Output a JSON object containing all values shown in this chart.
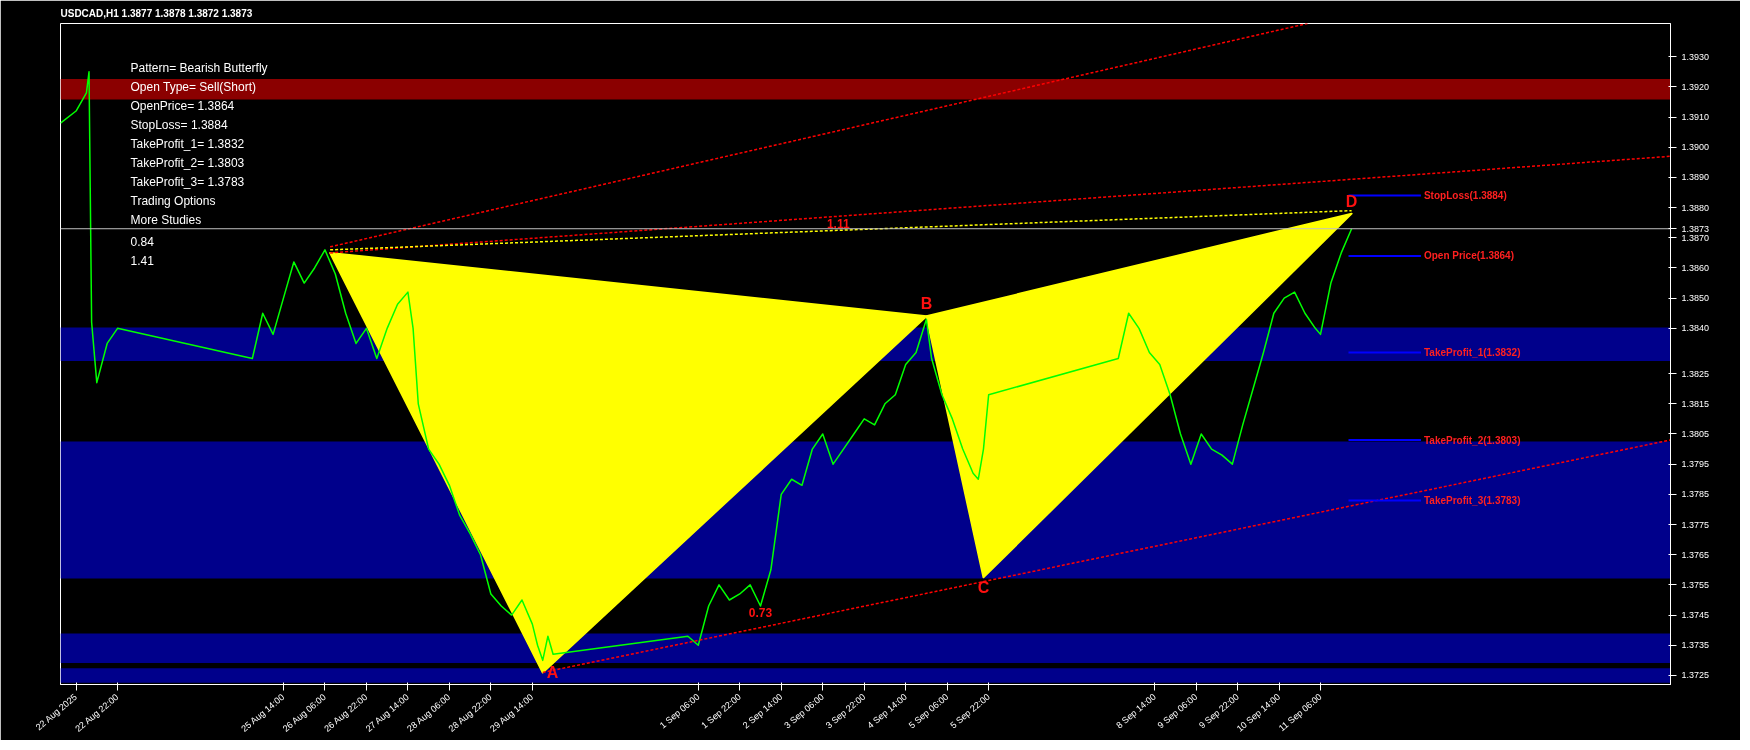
{
  "chart_data": {
    "type": "line",
    "title": "USDCAD,H1  1.3877 1.3878 1.3872 1.3873",
    "annotations": [
      "Pattern= Bearish Butterfly",
      "Open Type= Sell(Short)",
      "OpenPrice= 1.3864",
      "StopLoss= 1.3884",
      "TakeProfit_1= 1.3832",
      "TakeProfit_2= 1.3803",
      "TakeProfit_3= 1.3783",
      "Trading Options",
      "More Studies",
      "0.84",
      "1.41",
      {
        "text": "A",
        "x": "2025-08-29T18:00",
        "y": 1.3726
      },
      {
        "text": "B",
        "x": "2025-09-04T22:00",
        "y": 1.3844
      },
      {
        "text": "C",
        "x": "2025-09-05T20:00",
        "y": 1.37575
      },
      {
        "text": "D",
        "x": "2025-09-11T18:00",
        "y": 1.3878
      },
      {
        "text": "1.11",
        "x": "2025-09-03T12:00",
        "y": 1.3872
      },
      {
        "text": "0.73",
        "x": "2025-09-02T06:00",
        "y": 1.3748
      }
    ],
    "xlim": [
      "2025-08-22T00:00",
      "2025-09-16T21:00"
    ],
    "ylim": [
      1.3722,
      1.3941
    ],
    "xticks": [
      {
        "value": "2025-08-22T06:00",
        "label": "22 Aug 2025"
      },
      {
        "value": "2025-08-22T22:00",
        "label": "22 Aug 22:00"
      },
      {
        "value": "2025-08-25T14:00",
        "label": "25 Aug 14:00"
      },
      {
        "value": "2025-08-26T06:00",
        "label": "26 Aug 06:00"
      },
      {
        "value": "2025-08-26T22:00",
        "label": "26 Aug 22:00"
      },
      {
        "value": "2025-08-27T14:00",
        "label": "27 Aug 14:00"
      },
      {
        "value": "2025-08-28T06:00",
        "label": "28 Aug 06:00"
      },
      {
        "value": "2025-08-28T22:00",
        "label": "28 Aug 22:00"
      },
      {
        "value": "2025-08-29T14:00",
        "label": "29 Aug 14:00"
      },
      {
        "value": "2025-09-01T06:00",
        "label": "1 Sep 06:00"
      },
      {
        "value": "2025-09-01T22:00",
        "label": "1 Sep 22:00"
      },
      {
        "value": "2025-09-02T14:00",
        "label": "2 Sep 14:00"
      },
      {
        "value": "2025-09-03T06:00",
        "label": "3 Sep 06:00"
      },
      {
        "value": "2025-09-03T22:00",
        "label": "3 Sep 22:00"
      },
      {
        "value": "2025-09-04T14:00",
        "label": "4 Sep 14:00"
      },
      {
        "value": "2025-09-05T06:00",
        "label": "5 Sep 06:00"
      },
      {
        "value": "2025-09-05T22:00",
        "label": "5 Sep 22:00"
      },
      {
        "value": "2025-09-08T14:00",
        "label": "8 Sep 14:00"
      },
      {
        "value": "2025-09-09T06:00",
        "label": "9 Sep 06:00"
      },
      {
        "value": "2025-09-09T22:00",
        "label": "9 Sep 22:00"
      },
      {
        "value": "2025-09-10T14:00",
        "label": "10 Sep 14:00"
      },
      {
        "value": "2025-09-11T06:00",
        "label": "11 Sep 06:00"
      }
    ],
    "yticks": [
      {
        "value": 1.3725,
        "label": "1.3725"
      },
      {
        "value": 1.3735,
        "label": "1.3735"
      },
      {
        "value": 1.3745,
        "label": "1.3745"
      },
      {
        "value": 1.3755,
        "label": "1.3755"
      },
      {
        "value": 1.3765,
        "label": "1.3765"
      },
      {
        "value": 1.3775,
        "label": "1.3775"
      },
      {
        "value": 1.3785,
        "label": "1.3785"
      },
      {
        "value": 1.3795,
        "label": "1.3795"
      },
      {
        "value": 1.3805,
        "label": "1.3805"
      },
      {
        "value": 1.3815,
        "label": "1.3815"
      },
      {
        "value": 1.3825,
        "label": "1.3825"
      },
      {
        "value": 1.384,
        "label": "1.3840"
      },
      {
        "value": 1.385,
        "label": "1.3850"
      },
      {
        "value": 1.386,
        "label": "1.3860"
      },
      {
        "value": 1.387,
        "label": "1.3870"
      },
      {
        "value": 1.3873,
        "label": "1.3873"
      },
      {
        "value": 1.388,
        "label": "1.3880"
      },
      {
        "value": 1.389,
        "label": "1.3890"
      },
      {
        "value": 1.39,
        "label": "1.3900"
      },
      {
        "value": 1.391,
        "label": "1.3910"
      },
      {
        "value": 1.392,
        "label": "1.3920"
      },
      {
        "value": 1.393,
        "label": "1.3930"
      }
    ],
    "bands": [
      {
        "axis": "y",
        "from": 1.39158,
        "to": 1.39226,
        "color": "#8b0000"
      },
      {
        "axis": "y",
        "from": 1.38292,
        "to": 1.38403,
        "color": "#00008b"
      },
      {
        "axis": "y",
        "from": 1.37571,
        "to": 1.38025,
        "color": "#00008b"
      },
      {
        "axis": "y",
        "from": 1.37291,
        "to": 1.37389,
        "color": "#00008b"
      },
      {
        "axis": "y",
        "from": 1.37226,
        "to": 1.37274,
        "color": "#00008b"
      }
    ],
    "ref_lines": [
      {
        "axis": "y",
        "value": 1.3873,
        "color": "#c0c0c0"
      },
      {
        "axis": "y",
        "value": 1.3884,
        "label": "StopLoss(1.3884)",
        "color": "#0000ff"
      },
      {
        "axis": "y",
        "value": 1.3864,
        "label": "Open Price(1.3864)",
        "color": "#0000ff"
      },
      {
        "axis": "y",
        "value": 1.3832,
        "label": "TakeProfit_1(1.3832)",
        "color": "#0000ff"
      },
      {
        "axis": "y",
        "value": 1.3803,
        "label": "TakeProfit_2(1.3803)",
        "color": "#0000ff"
      },
      {
        "axis": "y",
        "value": 1.3783,
        "label": "TakeProfit_3(1.3783)",
        "color": "#0000ff"
      }
    ],
    "grid": false,
    "marker": "none",
    "series": [
      {
        "type": "area",
        "color": "#ffff00",
        "x": [
          "2025-08-26T08:00",
          "2025-08-29T18:00",
          "2025-09-04T22:00",
          "2025-08-26T08:00"
        ],
        "values": [
          1.3865,
          1.3726,
          1.3844,
          1.3865
        ]
      },
      {
        "type": "area",
        "color": "#ffff00",
        "x": [
          "2025-09-04T22:00",
          "2025-09-05T20:00",
          "2025-09-11T18:00",
          "2025-09-04T22:00"
        ],
        "values": [
          1.3844,
          1.37575,
          1.3878,
          1.3844
        ]
      },
      {
        "color": "#00ff00",
        "line_style": "solid",
        "x": [
          "2025-08-22T00:00",
          "2025-08-22T06:00",
          "2025-08-22T10:00",
          "2025-08-22T11:00",
          "2025-08-22T12:00",
          "2025-08-22T14:00",
          "2025-08-22T18:00",
          "2025-08-22T22:00",
          "2025-08-25T02:00",
          "2025-08-25T06:00",
          "2025-08-25T10:00",
          "2025-08-25T14:00",
          "2025-08-25T18:00",
          "2025-08-25T22:00",
          "2025-08-26T02:00",
          "2025-08-26T06:00",
          "2025-08-26T10:00",
          "2025-08-26T14:00",
          "2025-08-26T18:00",
          "2025-08-26T22:00",
          "2025-08-27T02:00",
          "2025-08-27T06:00",
          "2025-08-27T10:00",
          "2025-08-27T14:00",
          "2025-08-27T16:00",
          "2025-08-27T18:00",
          "2025-08-27T22:00",
          "2025-08-28T02:00",
          "2025-08-28T06:00",
          "2025-08-28T10:00",
          "2025-08-28T14:00",
          "2025-08-28T18:00",
          "2025-08-28T22:00",
          "2025-08-29T02:00",
          "2025-08-29T06:00",
          "2025-08-29T10:00",
          "2025-08-29T14:00",
          "2025-08-29T16:00",
          "2025-08-29T18:00",
          "2025-08-29T20:00",
          "2025-08-29T22:00",
          "2025-09-01T02:00",
          "2025-09-01T06:00",
          "2025-09-01T10:00",
          "2025-09-01T14:00",
          "2025-09-01T18:00",
          "2025-09-01T22:00",
          "2025-09-02T02:00",
          "2025-09-02T06:00",
          "2025-09-02T10:00",
          "2025-09-02T14:00",
          "2025-09-02T18:00",
          "2025-09-02T22:00",
          "2025-09-03T02:00",
          "2025-09-03T06:00",
          "2025-09-03T10:00",
          "2025-09-03T14:00",
          "2025-09-03T18:00",
          "2025-09-03T22:00",
          "2025-09-04T02:00",
          "2025-09-04T06:00",
          "2025-09-04T10:00",
          "2025-09-04T14:00",
          "2025-09-04T18:00",
          "2025-09-04T22:00",
          "2025-09-05T00:00",
          "2025-09-05T04:00",
          "2025-09-05T08:00",
          "2025-09-05T12:00",
          "2025-09-05T16:00",
          "2025-09-05T18:00",
          "2025-09-05T20:00",
          "2025-09-05T22:00",
          "2025-09-08T00:00",
          "2025-09-08T04:00",
          "2025-09-08T08:00",
          "2025-09-08T12:00",
          "2025-09-08T16:00",
          "2025-09-08T20:00",
          "2025-09-09T00:00",
          "2025-09-09T04:00",
          "2025-09-09T08:00",
          "2025-09-09T12:00",
          "2025-09-09T16:00",
          "2025-09-09T20:00",
          "2025-09-10T00:00",
          "2025-09-10T04:00",
          "2025-09-10T08:00",
          "2025-09-10T12:00",
          "2025-09-10T16:00",
          "2025-09-10T20:00",
          "2025-09-11T00:00",
          "2025-09-11T04:00",
          "2025-09-11T06:00",
          "2025-09-11T10:00",
          "2025-09-11T14:00",
          "2025-09-11T18:00"
        ],
        "values": [
          1.3908,
          1.3912,
          1.3918,
          1.3925,
          1.3842,
          1.3822,
          1.3835,
          1.384,
          1.383,
          1.3845,
          1.3838,
          1.385,
          1.3862,
          1.3855,
          1.386,
          1.3866,
          1.3858,
          1.3845,
          1.3835,
          1.384,
          1.383,
          1.384,
          1.3848,
          1.3852,
          1.384,
          1.3815,
          1.38,
          1.3795,
          1.3788,
          1.3778,
          1.3772,
          1.3765,
          1.3752,
          1.3748,
          1.3745,
          1.375,
          1.3742,
          1.3735,
          1.373,
          1.3738,
          1.3732,
          1.3738,
          1.3735,
          1.3748,
          1.3755,
          1.375,
          1.3752,
          1.3755,
          1.3748,
          1.376,
          1.3785,
          1.379,
          1.3788,
          1.38,
          1.3805,
          1.3795,
          1.38,
          1.3805,
          1.381,
          1.3808,
          1.3815,
          1.3818,
          1.3828,
          1.3832,
          1.3843,
          1.383,
          1.3818,
          1.381,
          1.38,
          1.3792,
          1.379,
          1.38,
          1.3818,
          1.383,
          1.3845,
          1.384,
          1.3832,
          1.3828,
          1.3818,
          1.3805,
          1.3795,
          1.3805,
          1.38,
          1.3798,
          1.3795,
          1.3808,
          1.382,
          1.3832,
          1.3845,
          1.385,
          1.3852,
          1.3845,
          1.384,
          1.3838,
          1.3855,
          1.3865,
          1.3873
        ]
      },
      {
        "color": "#ff0000",
        "line_style": "dashed",
        "x": [
          "2025-08-26T08:00",
          "2025-09-11T01:00"
        ],
        "values": [
          1.3867,
          1.3941
        ]
      },
      {
        "color": "#ff0000",
        "line_style": "dashed",
        "x": [
          "2025-08-26T08:00",
          "2025-09-16T21:00"
        ],
        "values": [
          1.3865,
          1.3897
        ]
      },
      {
        "color": "#ff0000",
        "line_style": "dashed",
        "x": [
          "2025-08-29T18:00",
          "2025-09-16T21:00"
        ],
        "values": [
          1.3726,
          1.3803
        ]
      },
      {
        "color": "#ffff00",
        "line_style": "dashed",
        "x": [
          "2025-08-26T08:00",
          "2025-09-11T18:00"
        ],
        "values": [
          1.3866,
          1.3879
        ]
      }
    ]
  }
}
